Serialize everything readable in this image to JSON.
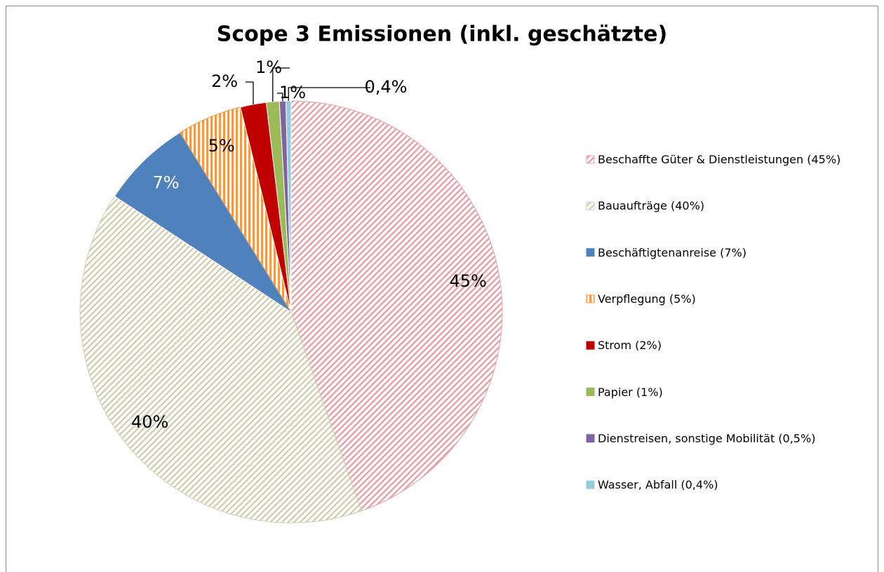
{
  "chart_data": {
    "type": "pie",
    "title": "Scope 3 Emissionen (inkl. geschätzte)",
    "categories": [
      "Beschaffte Güter & Dienstleistungen (45%)",
      "Bauaufträge (40%)",
      "Beschäftigtenanreise (7%)",
      "Verpflegung (5%)",
      "Strom (2%)",
      "Papier (1%)",
      "Dienstreisen, sonstige Mobilität (0,5%)",
      "Wasser, Abfall (0,4%)"
    ],
    "values": [
      45,
      40,
      7,
      5,
      2,
      1,
      0.5,
      0.4
    ],
    "value_labels": [
      "45%",
      "40%",
      "7%",
      "5%",
      "2%",
      "1%",
      "1%",
      "0,4%"
    ],
    "colors": [
      "#e6a3aa",
      "#d4cfb4",
      "#4f81bd",
      "#f79646",
      "#c00000",
      "#9bbb59",
      "#8064a2",
      "#93cddd"
    ],
    "patterns": [
      "diagonal",
      "diagonal",
      "solid",
      "vertical",
      "solid",
      "solid",
      "solid",
      "solid"
    ],
    "legend": "right"
  }
}
